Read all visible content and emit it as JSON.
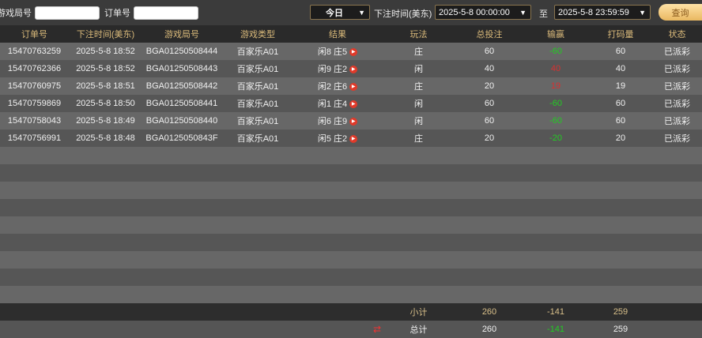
{
  "filters": {
    "round_label": "游戏局号",
    "order_label": "订单号",
    "round_value": "",
    "order_value": "",
    "period": "今日",
    "time_label": "下注时间(美东)",
    "start": "2025-5-8 00:00:00",
    "to_label": "至",
    "end": "2025-5-8 23:59:59",
    "query": "查询"
  },
  "columns": [
    "订单号",
    "下注时间(美东)",
    "游戏局号",
    "游戏类型",
    "结果",
    "玩法",
    "总投注",
    "输赢",
    "打码量",
    "状态"
  ],
  "rows": [
    {
      "order": "15470763259",
      "time": "2025-5-8 18:52",
      "round": "BGA01250508444",
      "type": "百家乐A01",
      "result": "闲8 庄5",
      "play": "庄",
      "bet": "60",
      "win": "-60",
      "valid": "60",
      "status": "已派彩"
    },
    {
      "order": "15470762366",
      "time": "2025-5-8 18:52",
      "round": "BGA01250508443",
      "type": "百家乐A01",
      "result": "闲9 庄2",
      "play": "闲",
      "bet": "40",
      "win": "40",
      "valid": "40",
      "status": "已派彩"
    },
    {
      "order": "15470760975",
      "time": "2025-5-8 18:51",
      "round": "BGA01250508442",
      "type": "百家乐A01",
      "result": "闲2 庄6",
      "play": "庄",
      "bet": "20",
      "win": "19",
      "valid": "19",
      "status": "已派彩"
    },
    {
      "order": "15470759869",
      "time": "2025-5-8 18:50",
      "round": "BGA01250508441",
      "type": "百家乐A01",
      "result": "闲1 庄4",
      "play": "闲",
      "bet": "60",
      "win": "-60",
      "valid": "60",
      "status": "已派彩"
    },
    {
      "order": "15470758043",
      "time": "2025-5-8 18:49",
      "round": "BGA01250508440",
      "type": "百家乐A01",
      "result": "闲6 庄9",
      "play": "闲",
      "bet": "60",
      "win": "-60",
      "valid": "60",
      "status": "已派彩"
    },
    {
      "order": "15470756991",
      "time": "2025-5-8 18:48",
      "round": "BGA0125050843F",
      "type": "百家乐A01",
      "result": "闲5 庄2",
      "play": "庄",
      "bet": "20",
      "win": "-20",
      "valid": "20",
      "status": "已派彩"
    }
  ],
  "subtotal": {
    "label": "小计",
    "bet": "260",
    "win": "-141",
    "valid": "259"
  },
  "total": {
    "label": "总计",
    "bet": "260",
    "win": "-141",
    "valid": "259"
  },
  "colors": {
    "win_negative": "#22cc22",
    "win_positive": "#d93030",
    "header_text": "#d9b97a"
  }
}
